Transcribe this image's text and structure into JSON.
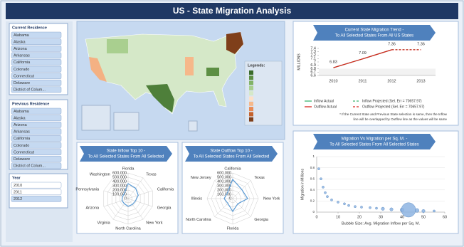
{
  "title": "US - State Migration Analysis",
  "slicers": [
    {
      "title": "Current Residence",
      "items": [
        "Alabama",
        "Alaska",
        "Arizona",
        "Arkansas",
        "California",
        "Colorado",
        "Connecticut",
        "Delaware",
        "District of Colum..."
      ]
    },
    {
      "title": "Previous Residence",
      "items": [
        "Alabama",
        "Alaska",
        "Arizona",
        "Arkansas",
        "California",
        "Colorado",
        "Connecticut",
        "Delaware",
        "District of Colum..."
      ]
    },
    {
      "title": "Year",
      "items": [
        "2010",
        "2011",
        "2012"
      ],
      "selected": [
        false,
        false,
        true
      ]
    }
  ],
  "map": {
    "legend_title": "Legends:"
  },
  "chart_data": [
    {
      "type": "line",
      "title": "Current State Migration Trend -",
      "subtitle": "To All Selected States From All US States",
      "y_label": "MILLIONS",
      "categories": [
        "2010",
        "2011",
        "2012",
        "2013"
      ],
      "ylim": [
        6.6,
        7.4
      ],
      "yticks": [
        6.6,
        6.7,
        6.8,
        6.9,
        7,
        7.1,
        7.2,
        7.3,
        7.4
      ],
      "series": [
        {
          "name": "Inflow Actual",
          "color": "#3cb371",
          "values": [
            6.83,
            7.09,
            7.36,
            null
          ]
        },
        {
          "name": "Inflow Projected (Sel. Err = 70657.97)",
          "color": "#3cb371",
          "dashed": true,
          "values": [
            null,
            null,
            7.36,
            7.36
          ]
        },
        {
          "name": "Outflow Actual",
          "color": "#d7261e",
          "labels": true,
          "values": [
            6.83,
            7.09,
            7.36,
            null
          ]
        },
        {
          "name": "Outflow Projected (Sel. Err = 70657.97)",
          "color": "#d7261e",
          "dashed": true,
          "labels": true,
          "values": [
            null,
            null,
            7.36,
            7.36
          ]
        }
      ],
      "note": [
        "* If the Current State and Previous State selection is same, then the Inflow",
        "line will be overlapped by Outflow line as the values will be same"
      ]
    },
    {
      "type": "radar",
      "title": "State Inflow Top 10 -",
      "subtitle": "To All Selected States From All Selected",
      "categories": [
        "Florida",
        "Texas",
        "California",
        "Georgia",
        "New York",
        "North Carolina",
        "Virginia",
        "Arizona",
        "Pennsylvania",
        "Washington"
      ],
      "values": [
        350000,
        300000,
        250000,
        180000,
        170000,
        180000,
        150000,
        150000,
        140000,
        150000
      ],
      "color": "#5b9bd5",
      "ylim": [
        0,
        600000
      ],
      "yticks": [
        0,
        {
          "value": 100000,
          "label": "100,000"
        },
        {
          "value": 200000,
          "label": "200,000"
        },
        {
          "value": 300000,
          "label": "300,000"
        },
        {
          "value": 400000,
          "label": "400,000"
        },
        {
          "value": 500000,
          "label": "500,000"
        },
        {
          "value": 600000,
          "label": "600,000"
        }
      ]
    },
    {
      "type": "radar",
      "title": "State Outflow Top 10 -",
      "subtitle": "To All Selected States From All Selected",
      "categories": [
        "California",
        "Texas",
        "New York",
        "Georgia",
        "Florida",
        "North Carolina",
        "Illinois",
        "New Jersey"
      ],
      "values": [
        450000,
        300000,
        350000,
        170000,
        300000,
        160000,
        200000,
        180000
      ],
      "color": "#5b9bd5",
      "ylim": [
        0,
        600000
      ],
      "yticks": [
        0,
        {
          "value": 100000,
          "label": "100,000"
        },
        {
          "value": 200000,
          "label": "200,000"
        },
        {
          "value": 300000,
          "label": "300,000"
        },
        {
          "value": 400000,
          "label": "400,000"
        },
        {
          "value": 500000,
          "label": "500,000"
        },
        {
          "value": 600000,
          "label": "600,000"
        }
      ]
    },
    {
      "type": "bubble",
      "title": "Migration Vs Migration per Sq. M. -",
      "subtitle": "To All Selected States From All Selected States",
      "x_label": "Bubble Size: Avg. Migration Inflow per Sq. M.",
      "y_label": "Migration in Millions",
      "x": [
        1,
        2,
        3,
        4,
        5,
        7,
        10,
        13,
        15,
        18,
        21,
        25,
        28,
        31,
        35,
        40,
        43,
        47,
        50,
        55
      ],
      "values": [
        0.78,
        0.6,
        0.45,
        0.35,
        0.28,
        0.22,
        0.18,
        0.15,
        0.12,
        0.1,
        0.09,
        0.08,
        0.07,
        0.06,
        0.05,
        0.04,
        0.04,
        0.03,
        0.02,
        0.02
      ],
      "sizes": [
        1,
        1,
        1,
        1,
        1,
        1,
        1,
        1,
        1,
        1,
        1,
        1,
        1,
        2,
        2,
        3,
        40,
        3,
        2,
        1
      ],
      "color": "#8db4e2",
      "xlim": [
        0,
        60
      ],
      "xticks": [
        0,
        10,
        20,
        30,
        40,
        50,
        60
      ],
      "ylim": [
        0,
        1
      ],
      "yticks": [
        0,
        0.2,
        0.4,
        0.6,
        0.8,
        1
      ]
    }
  ]
}
